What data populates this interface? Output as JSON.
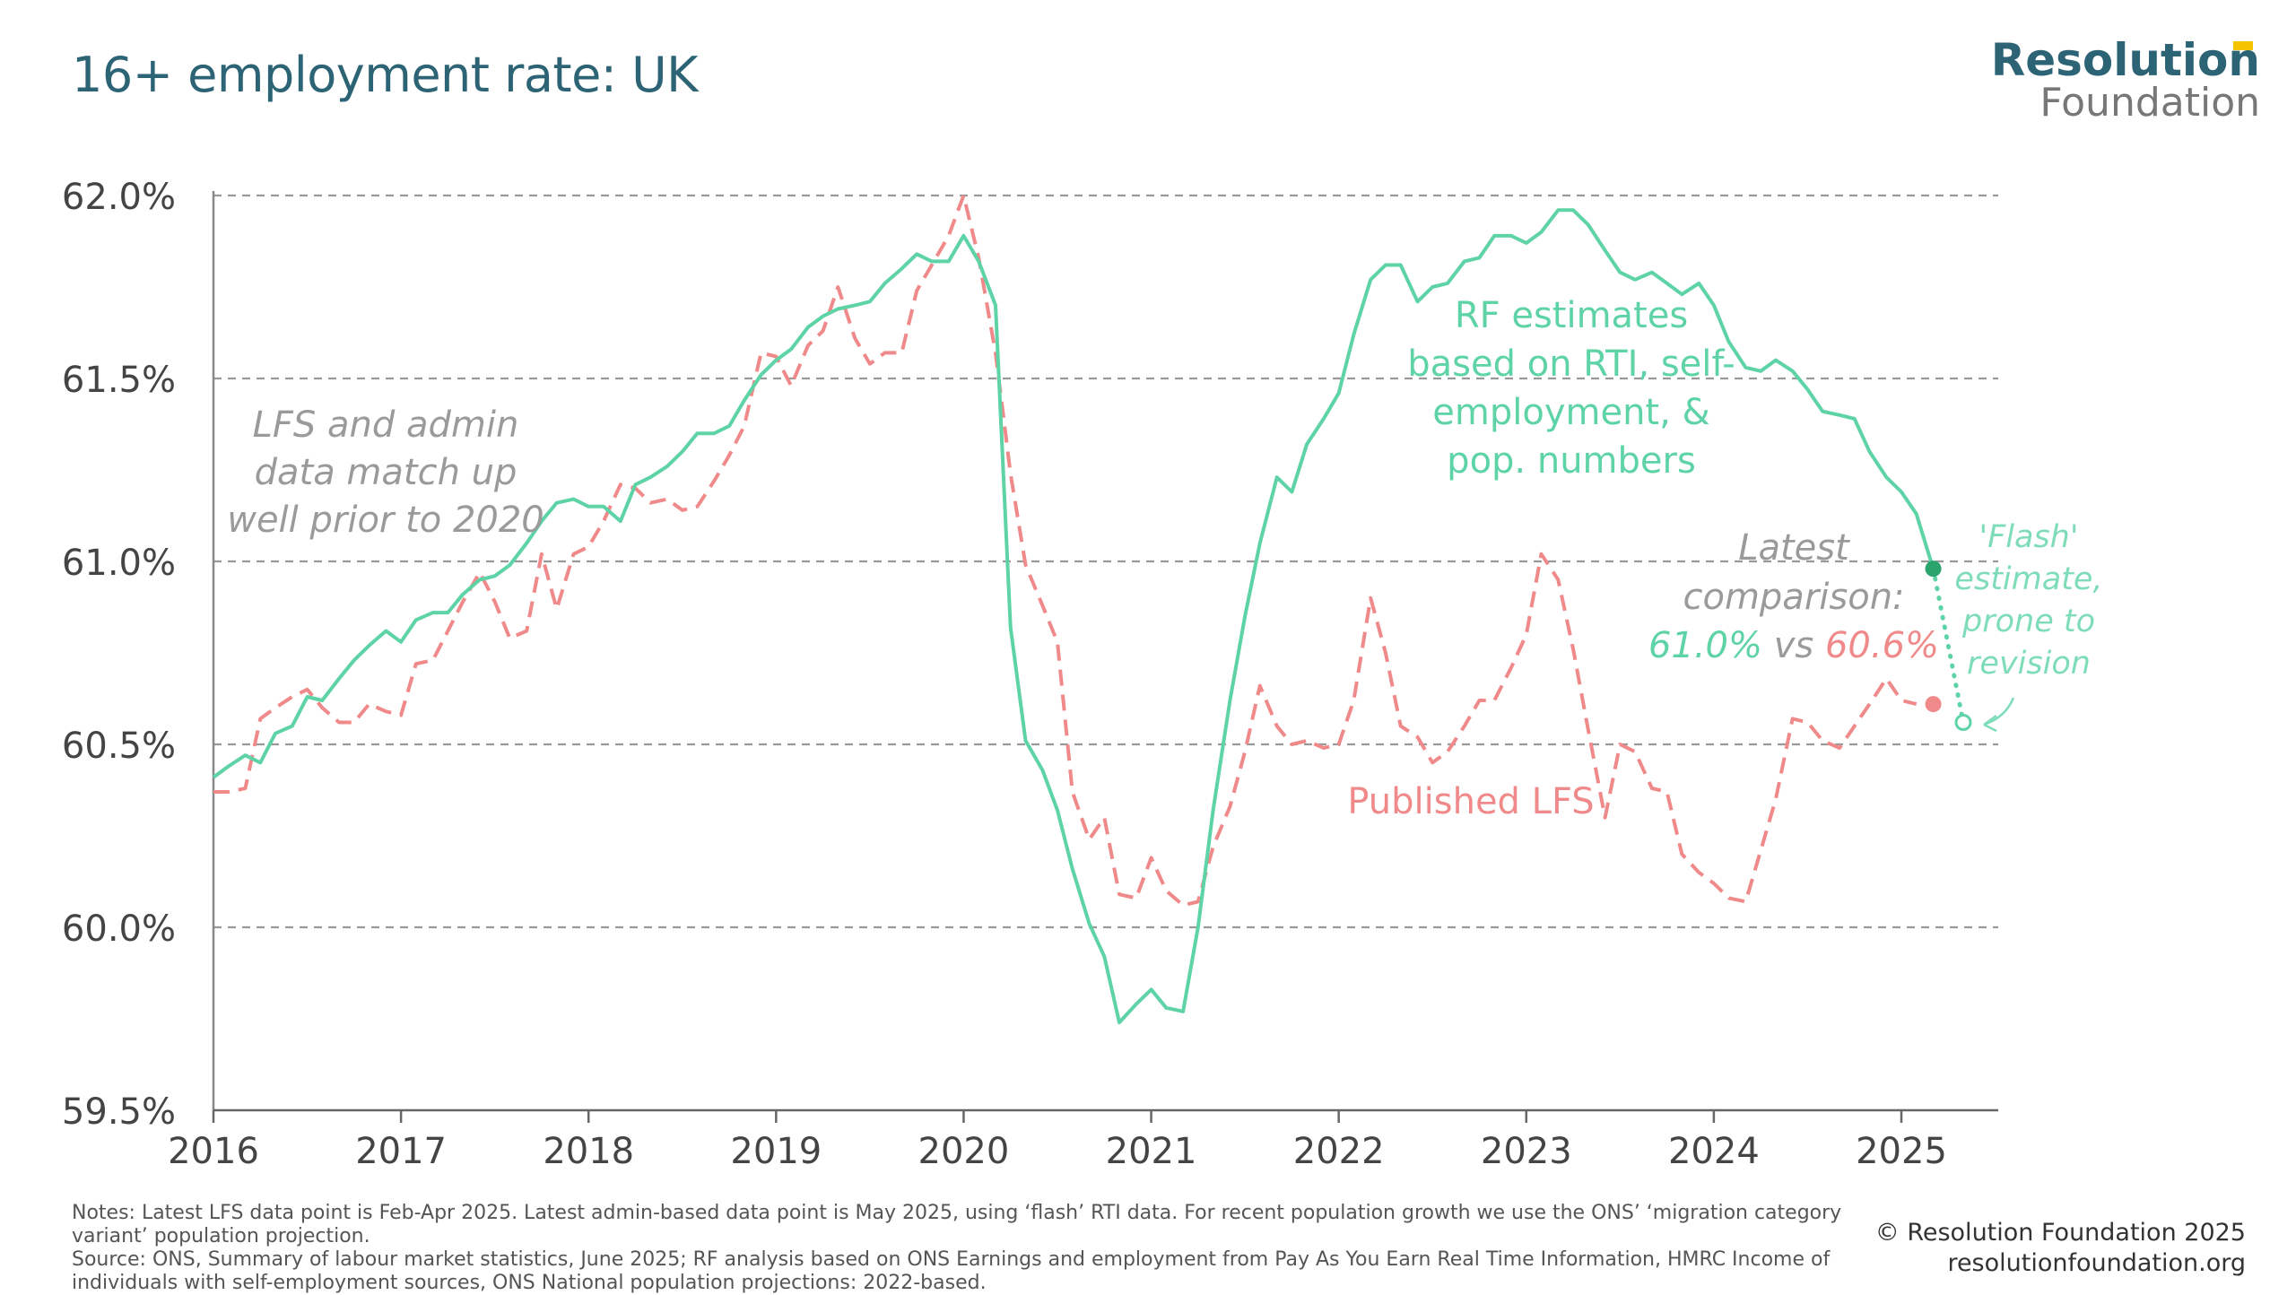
{
  "title": "16+ employment rate: UK",
  "logo": {
    "line1": "Resolution",
    "line2": "Foundation",
    "mark_color": "#F5C400"
  },
  "colors": {
    "rf": "#5DD3A6",
    "rf_dot": "#2BA36C",
    "lfs": "#F08A8A",
    "grid": "#999999",
    "axis_text": "#444444",
    "annotation_grey": "#9A9A9A"
  },
  "annotations": {
    "left": [
      "LFS and admin",
      "data match up",
      "well prior to 2020"
    ],
    "rf": [
      "RF estimates",
      "based on RTI, self-",
      "employment, &",
      "pop. numbers"
    ],
    "lfs": "Published LFS",
    "latest_l1": "Latest",
    "latest_l2": "comparison:",
    "latest_rf": "61.0%",
    "latest_vs": "vs",
    "latest_lfs": "60.6%",
    "flash": [
      "'Flash'",
      "estimate,",
      "prone to",
      "revision"
    ]
  },
  "chart_data": {
    "type": "line",
    "title": "16+ employment rate: UK",
    "x_ticks": [
      "2016",
      "2017",
      "2018",
      "2019",
      "2020",
      "2021",
      "2022",
      "2023",
      "2024",
      "2025"
    ],
    "y_ticks": [
      "62.0%",
      "61.5%",
      "61.0%",
      "60.5%",
      "60.0%",
      "59.5%"
    ],
    "xlim": [
      2016,
      2025.83
    ],
    "ylim": [
      59.5,
      62.0
    ],
    "grid": "horizontal dashed",
    "series": [
      {
        "name": "RF estimates based on RTI, self-employment, & pop. numbers",
        "style": "solid",
        "points": [
          [
            2016.0,
            60.41
          ],
          [
            2016.08,
            60.44
          ],
          [
            2016.17,
            60.47
          ],
          [
            2016.25,
            60.45
          ],
          [
            2016.33,
            60.53
          ],
          [
            2016.42,
            60.55
          ],
          [
            2016.5,
            60.63
          ],
          [
            2016.58,
            60.62
          ],
          [
            2016.67,
            60.68
          ],
          [
            2016.75,
            60.73
          ],
          [
            2016.83,
            60.77
          ],
          [
            2016.92,
            60.81
          ],
          [
            2017.0,
            60.78
          ],
          [
            2017.08,
            60.84
          ],
          [
            2017.17,
            60.86
          ],
          [
            2017.25,
            60.86
          ],
          [
            2017.33,
            60.91
          ],
          [
            2017.42,
            60.95
          ],
          [
            2017.5,
            60.96
          ],
          [
            2017.58,
            60.99
          ],
          [
            2017.67,
            61.05
          ],
          [
            2017.75,
            61.11
          ],
          [
            2017.83,
            61.16
          ],
          [
            2017.92,
            61.17
          ],
          [
            2018.0,
            61.15
          ],
          [
            2018.08,
            61.15
          ],
          [
            2018.17,
            61.11
          ],
          [
            2018.25,
            61.21
          ],
          [
            2018.33,
            61.23
          ],
          [
            2018.42,
            61.26
          ],
          [
            2018.5,
            61.3
          ],
          [
            2018.58,
            61.35
          ],
          [
            2018.67,
            61.35
          ],
          [
            2018.75,
            61.37
          ],
          [
            2018.83,
            61.44
          ],
          [
            2018.92,
            61.51
          ],
          [
            2019.0,
            61.55
          ],
          [
            2019.08,
            61.58
          ],
          [
            2019.17,
            61.64
          ],
          [
            2019.25,
            61.67
          ],
          [
            2019.33,
            61.69
          ],
          [
            2019.42,
            61.7
          ],
          [
            2019.5,
            61.71
          ],
          [
            2019.58,
            61.76
          ],
          [
            2019.67,
            61.8
          ],
          [
            2019.75,
            61.84
          ],
          [
            2019.83,
            61.82
          ],
          [
            2019.92,
            61.82
          ],
          [
            2020.0,
            61.89
          ],
          [
            2020.08,
            61.82
          ],
          [
            2020.17,
            61.7
          ],
          [
            2020.25,
            60.82
          ],
          [
            2020.33,
            60.51
          ],
          [
            2020.42,
            60.43
          ],
          [
            2020.5,
            60.32
          ],
          [
            2020.58,
            60.16
          ],
          [
            2020.67,
            60.01
          ],
          [
            2020.75,
            59.92
          ],
          [
            2020.83,
            59.74
          ],
          [
            2020.92,
            59.79
          ],
          [
            2021.0,
            59.83
          ],
          [
            2021.08,
            59.78
          ],
          [
            2021.17,
            59.77
          ],
          [
            2021.25,
            60.0
          ],
          [
            2021.33,
            60.32
          ],
          [
            2021.42,
            60.62
          ],
          [
            2021.5,
            60.85
          ],
          [
            2021.58,
            61.05
          ],
          [
            2021.67,
            61.23
          ],
          [
            2021.75,
            61.19
          ],
          [
            2021.83,
            61.32
          ],
          [
            2021.92,
            61.39
          ],
          [
            2022.0,
            61.46
          ],
          [
            2022.08,
            61.62
          ],
          [
            2022.17,
            61.77
          ],
          [
            2022.25,
            61.81
          ],
          [
            2022.33,
            61.81
          ],
          [
            2022.42,
            61.71
          ],
          [
            2022.5,
            61.75
          ],
          [
            2022.58,
            61.76
          ],
          [
            2022.67,
            61.82
          ],
          [
            2022.75,
            61.83
          ],
          [
            2022.83,
            61.89
          ],
          [
            2022.92,
            61.89
          ],
          [
            2023.0,
            61.87
          ],
          [
            2023.08,
            61.9
          ],
          [
            2023.17,
            61.96
          ],
          [
            2023.25,
            61.96
          ],
          [
            2023.33,
            61.92
          ],
          [
            2023.42,
            61.85
          ],
          [
            2023.5,
            61.79
          ],
          [
            2023.58,
            61.77
          ],
          [
            2023.67,
            61.79
          ],
          [
            2023.75,
            61.76
          ],
          [
            2023.83,
            61.73
          ],
          [
            2023.92,
            61.76
          ],
          [
            2024.0,
            61.7
          ],
          [
            2024.08,
            61.6
          ],
          [
            2024.17,
            61.53
          ],
          [
            2024.25,
            61.52
          ],
          [
            2024.33,
            61.55
          ],
          [
            2024.42,
            61.52
          ],
          [
            2024.5,
            61.47
          ],
          [
            2024.58,
            61.41
          ],
          [
            2024.67,
            61.4
          ],
          [
            2024.75,
            61.39
          ],
          [
            2024.83,
            61.3
          ],
          [
            2024.92,
            61.23
          ],
          [
            2025.0,
            61.19
          ],
          [
            2025.08,
            61.13
          ],
          [
            2025.17,
            60.98
          ]
        ]
      },
      {
        "name": "Published LFS",
        "style": "dashed",
        "points": [
          [
            2016.0,
            60.37
          ],
          [
            2016.08,
            60.37
          ],
          [
            2016.17,
            60.38
          ],
          [
            2016.25,
            60.57
          ],
          [
            2016.33,
            60.6
          ],
          [
            2016.42,
            60.63
          ],
          [
            2016.5,
            60.65
          ],
          [
            2016.58,
            60.6
          ],
          [
            2016.67,
            60.56
          ],
          [
            2016.75,
            60.56
          ],
          [
            2016.83,
            60.61
          ],
          [
            2016.92,
            60.59
          ],
          [
            2017.0,
            60.58
          ],
          [
            2017.08,
            60.72
          ],
          [
            2017.17,
            60.73
          ],
          [
            2017.25,
            60.81
          ],
          [
            2017.33,
            60.89
          ],
          [
            2017.42,
            60.97
          ],
          [
            2017.5,
            60.89
          ],
          [
            2017.58,
            60.79
          ],
          [
            2017.67,
            60.81
          ],
          [
            2017.75,
            61.02
          ],
          [
            2017.83,
            60.87
          ],
          [
            2017.92,
            61.02
          ],
          [
            2018.0,
            61.04
          ],
          [
            2018.08,
            61.11
          ],
          [
            2018.17,
            61.21
          ],
          [
            2018.25,
            61.2
          ],
          [
            2018.33,
            61.16
          ],
          [
            2018.42,
            61.17
          ],
          [
            2018.5,
            61.14
          ],
          [
            2018.58,
            61.15
          ],
          [
            2018.67,
            61.22
          ],
          [
            2018.75,
            61.29
          ],
          [
            2018.83,
            61.37
          ],
          [
            2018.92,
            61.57
          ],
          [
            2019.0,
            61.56
          ],
          [
            2019.08,
            61.48
          ],
          [
            2019.17,
            61.59
          ],
          [
            2019.25,
            61.63
          ],
          [
            2019.33,
            61.75
          ],
          [
            2019.42,
            61.61
          ],
          [
            2019.5,
            61.54
          ],
          [
            2019.58,
            61.57
          ],
          [
            2019.67,
            61.57
          ],
          [
            2019.75,
            61.74
          ],
          [
            2019.83,
            61.81
          ],
          [
            2019.92,
            61.89
          ],
          [
            2020.0,
            62.0
          ],
          [
            2020.08,
            61.83
          ],
          [
            2020.17,
            61.57
          ],
          [
            2020.25,
            61.24
          ],
          [
            2020.33,
            60.99
          ],
          [
            2020.42,
            60.88
          ],
          [
            2020.5,
            60.78
          ],
          [
            2020.58,
            60.37
          ],
          [
            2020.67,
            60.24
          ],
          [
            2020.75,
            60.3
          ],
          [
            2020.83,
            60.09
          ],
          [
            2020.92,
            60.08
          ],
          [
            2021.0,
            60.19
          ],
          [
            2021.08,
            60.1
          ],
          [
            2021.17,
            60.06
          ],
          [
            2021.25,
            60.07
          ],
          [
            2021.33,
            60.22
          ],
          [
            2021.42,
            60.33
          ],
          [
            2021.5,
            60.48
          ],
          [
            2021.58,
            60.66
          ],
          [
            2021.67,
            60.55
          ],
          [
            2021.75,
            60.5
          ],
          [
            2021.83,
            60.51
          ],
          [
            2021.92,
            60.49
          ],
          [
            2022.0,
            60.5
          ],
          [
            2022.08,
            60.62
          ],
          [
            2022.17,
            60.9
          ],
          [
            2022.25,
            60.75
          ],
          [
            2022.33,
            60.55
          ],
          [
            2022.42,
            60.52
          ],
          [
            2022.5,
            60.45
          ],
          [
            2022.58,
            60.48
          ],
          [
            2022.67,
            60.55
          ],
          [
            2022.75,
            60.62
          ],
          [
            2022.83,
            60.62
          ],
          [
            2022.92,
            60.71
          ],
          [
            2023.0,
            60.8
          ],
          [
            2023.08,
            61.02
          ],
          [
            2023.17,
            60.95
          ],
          [
            2023.25,
            60.76
          ],
          [
            2023.33,
            60.54
          ],
          [
            2023.42,
            60.3
          ],
          [
            2023.5,
            60.5
          ],
          [
            2023.58,
            60.48
          ],
          [
            2023.67,
            60.38
          ],
          [
            2023.75,
            60.37
          ],
          [
            2023.83,
            60.2
          ],
          [
            2023.92,
            60.15
          ],
          [
            2024.0,
            60.12
          ],
          [
            2024.08,
            60.08
          ],
          [
            2024.17,
            60.07
          ],
          [
            2024.25,
            60.21
          ],
          [
            2024.33,
            60.35
          ],
          [
            2024.42,
            60.57
          ],
          [
            2024.5,
            60.56
          ],
          [
            2024.58,
            60.51
          ],
          [
            2024.67,
            60.49
          ],
          [
            2024.75,
            60.55
          ],
          [
            2024.83,
            60.61
          ],
          [
            2024.92,
            60.68
          ],
          [
            2025.0,
            60.62
          ],
          [
            2025.08,
            60.61
          ]
        ]
      }
    ],
    "flash_estimate": {
      "from": [
        2025.17,
        60.98
      ],
      "to": [
        2025.33,
        60.56
      ]
    },
    "latest_lfs_point": [
      2025.17,
      60.61
    ]
  },
  "notes": {
    "line1": "Notes: Latest LFS data point is Feb-Apr 2025. Latest admin-based data point is May 2025, using ‘flash’ RTI data. For recent population growth we use the ONS’ ‘migration category variant’ population projection.",
    "line2": "Source: ONS, Summary of labour market statistics, June 2025; RF analysis based on ONS Earnings and employment from Pay As You Earn Real Time Information, HMRC Income of individuals with self-employment sources, ONS National population projections: 2022-based."
  },
  "credits": {
    "copyright": "© Resolution Foundation 2025",
    "website": "resolutionfoundation.org"
  }
}
